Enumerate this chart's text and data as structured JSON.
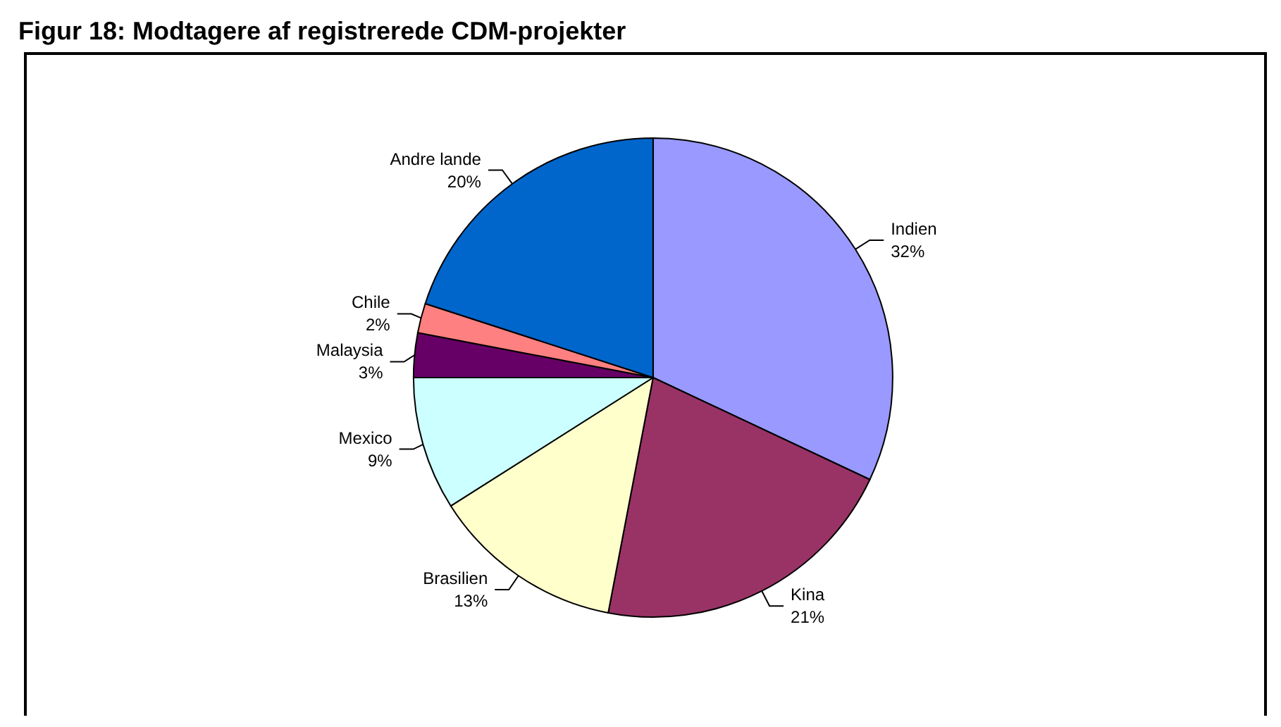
{
  "chart_data": {
    "type": "pie",
    "title": "Figur 18: Modtagere af registrerede CDM-projekter",
    "categories": [
      "Indien",
      "Kina",
      "Brasilien",
      "Mexico",
      "Malaysia",
      "Chile",
      "Andre lande"
    ],
    "values": [
      32,
      21,
      13,
      9,
      3,
      2,
      20
    ],
    "colors": [
      "#9999ff",
      "#993366",
      "#ffffcc",
      "#ccffff",
      "#660066",
      "#ff8080",
      "#0066cc"
    ],
    "value_labels": [
      "32%",
      "21%",
      "13%",
      "9%",
      "3%",
      "2%",
      "20%"
    ],
    "legend": false
  }
}
